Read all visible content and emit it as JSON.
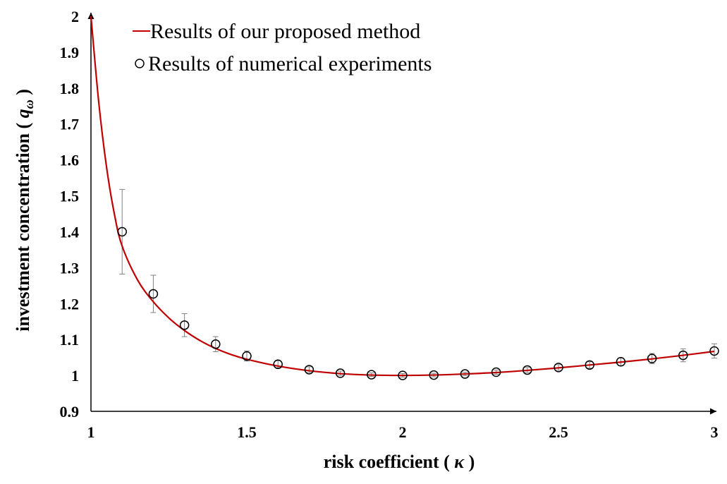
{
  "chart_data": {
    "type": "line",
    "xlabel_prefix": "risk coefficient ( ",
    "xlabel_symbol": "κ",
    "xlabel_suffix": " )",
    "ylabel_prefix": "investment concentration ( ",
    "ylabel_symbol": "q",
    "ylabel_subscript": "ω",
    "ylabel_suffix": " )",
    "xlim": [
      1,
      3
    ],
    "ylim": [
      0.9,
      2
    ],
    "x_ticks": [
      1,
      1.5,
      2,
      2.5,
      3
    ],
    "x_tick_labels": [
      "1",
      "1.5",
      "2",
      "2.5",
      "3"
    ],
    "y_ticks": [
      0.9,
      1,
      1.1,
      1.2,
      1.3,
      1.4,
      1.5,
      1.6,
      1.7,
      1.8,
      1.9,
      2
    ],
    "y_tick_labels": [
      "0.9",
      "1",
      "1.1",
      "1.2",
      "1.3",
      "1.4",
      "1.5",
      "1.6",
      "1.7",
      "1.8",
      "1.9",
      "2"
    ],
    "grid": false,
    "legend_position": "top-left",
    "series": [
      {
        "name": "Results of our proposed method",
        "kind": "line",
        "color": "#c00000",
        "x": [
          1.0,
          1.025,
          1.05,
          1.075,
          1.1,
          1.15,
          1.2,
          1.25,
          1.3,
          1.35,
          1.4,
          1.45,
          1.5,
          1.6,
          1.7,
          1.8,
          1.9,
          2.0,
          2.1,
          2.2,
          2.3,
          2.4,
          2.5,
          2.6,
          2.7,
          2.8,
          2.9,
          3.0
        ],
        "y": [
          2.0,
          1.76,
          1.58,
          1.45,
          1.36,
          1.265,
          1.205,
          1.16,
          1.125,
          1.097,
          1.075,
          1.058,
          1.045,
          1.026,
          1.013,
          1.005,
          1.001,
          1.0,
          1.001,
          1.004,
          1.008,
          1.014,
          1.021,
          1.029,
          1.037,
          1.046,
          1.056,
          1.067
        ]
      },
      {
        "name": "Results of numerical experiments",
        "kind": "scatter",
        "color": "#000000",
        "x": [
          1.1,
          1.2,
          1.3,
          1.4,
          1.5,
          1.6,
          1.7,
          1.8,
          1.9,
          2.0,
          2.1,
          2.2,
          2.3,
          2.4,
          2.5,
          2.6,
          2.7,
          2.8,
          2.9,
          3.0
        ],
        "y": [
          1.4,
          1.227,
          1.14,
          1.087,
          1.054,
          1.031,
          1.016,
          1.006,
          1.002,
          1.0,
          1.001,
          1.004,
          1.009,
          1.015,
          1.022,
          1.029,
          1.038,
          1.047,
          1.056,
          1.068
        ],
        "error": [
          0.118,
          0.052,
          0.032,
          0.021,
          0.014,
          0.01,
          0.008,
          0.006,
          0.005,
          0.005,
          0.005,
          0.005,
          0.006,
          0.007,
          0.008,
          0.009,
          0.011,
          0.014,
          0.018,
          0.02
        ]
      }
    ]
  }
}
